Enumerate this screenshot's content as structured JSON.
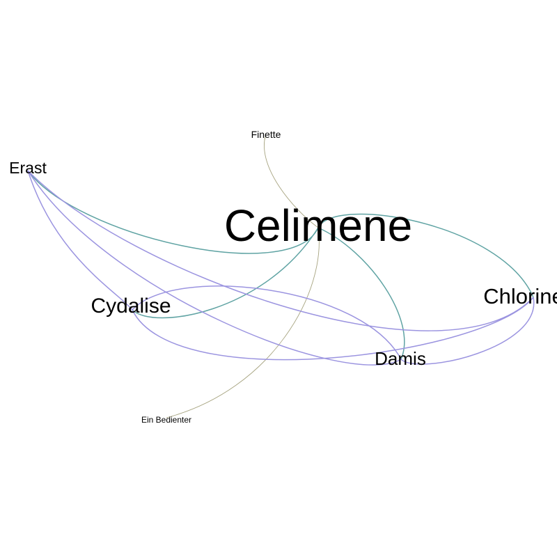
{
  "graph": {
    "nodes": [
      {
        "id": "celimene",
        "label": "Celimene"
      },
      {
        "id": "erast",
        "label": "Erast"
      },
      {
        "id": "cydalise",
        "label": "Cydalise"
      },
      {
        "id": "chlorine",
        "label": "Chlorine"
      },
      {
        "id": "damis",
        "label": "Damis"
      },
      {
        "id": "finette",
        "label": "Finette"
      },
      {
        "id": "bedienter",
        "label": "Ein Bedienter"
      }
    ],
    "edges": [
      {
        "source": "erast",
        "target": "celimene",
        "color": "#5fa3a3"
      },
      {
        "source": "celimene",
        "target": "cydalise",
        "color": "#5fa3a3"
      },
      {
        "source": "celimene",
        "target": "chlorine",
        "color": "#5fa3a3"
      },
      {
        "source": "celimene",
        "target": "damis",
        "color": "#5fa3a3"
      },
      {
        "source": "finette",
        "target": "celimene",
        "color": "#a6a37f"
      },
      {
        "source": "celimene",
        "target": "bedienter",
        "color": "#a6a37f"
      },
      {
        "source": "erast",
        "target": "cydalise",
        "color": "#9b94e0"
      },
      {
        "source": "erast",
        "target": "chlorine",
        "color": "#9b94e0"
      },
      {
        "source": "erast",
        "target": "damis",
        "color": "#9b94e0"
      },
      {
        "source": "cydalise",
        "target": "chlorine",
        "color": "#9b94e0"
      },
      {
        "source": "cydalise",
        "target": "damis",
        "color": "#9b94e0"
      },
      {
        "source": "damis",
        "target": "chlorine",
        "color": "#9b94e0"
      }
    ]
  }
}
